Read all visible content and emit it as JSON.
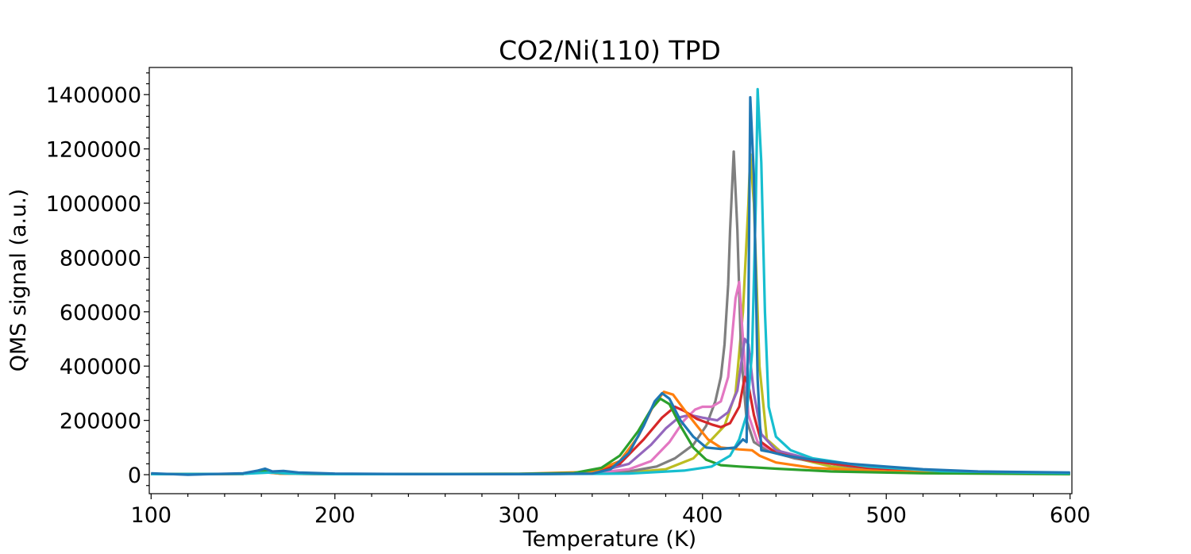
{
  "chart_data": {
    "type": "line",
    "title": "CO2/Ni(110) TPD",
    "xlabel": "Temperature (K)",
    "ylabel": "QMS signal (a.u.)",
    "xlim": [
      99,
      601
    ],
    "ylim": [
      -70000,
      1500000
    ],
    "xticks": [
      100,
      200,
      300,
      400,
      500,
      600
    ],
    "yticks": [
      0,
      200000,
      400000,
      600000,
      800000,
      1000000,
      1200000,
      1400000
    ],
    "grid": false,
    "legend": "none",
    "series": [
      {
        "color": "#bcbd22",
        "points": [
          [
            100,
            2000
          ],
          [
            150,
            3000
          ],
          [
            160,
            12000
          ],
          [
            170,
            5000
          ],
          [
            200,
            2000
          ],
          [
            300,
            2000
          ],
          [
            340,
            4000
          ],
          [
            360,
            8000
          ],
          [
            380,
            20000
          ],
          [
            395,
            60000
          ],
          [
            405,
            130000
          ],
          [
            412,
            180000
          ],
          [
            418,
            300000
          ],
          [
            422,
            600000
          ],
          [
            425,
            1000000
          ],
          [
            426,
            1180000
          ],
          [
            428,
            1000000
          ],
          [
            431,
            400000
          ],
          [
            435,
            130000
          ],
          [
            445,
            70000
          ],
          [
            470,
            30000
          ],
          [
            500,
            15000
          ],
          [
            550,
            6000
          ],
          [
            600,
            3000
          ]
        ]
      },
      {
        "color": "#7f7f7f",
        "points": [
          [
            100,
            2000
          ],
          [
            150,
            3000
          ],
          [
            160,
            10000
          ],
          [
            170,
            4000
          ],
          [
            200,
            2000
          ],
          [
            300,
            2000
          ],
          [
            340,
            4000
          ],
          [
            360,
            12000
          ],
          [
            375,
            30000
          ],
          [
            385,
            60000
          ],
          [
            395,
            110000
          ],
          [
            402,
            180000
          ],
          [
            407,
            270000
          ],
          [
            410,
            360000
          ],
          [
            412,
            480000
          ],
          [
            414,
            700000
          ],
          [
            415,
            900000
          ],
          [
            417,
            1190000
          ],
          [
            419,
            900000
          ],
          [
            421,
            450000
          ],
          [
            424,
            200000
          ],
          [
            428,
            120000
          ],
          [
            435,
            90000
          ],
          [
            450,
            60000
          ],
          [
            480,
            30000
          ],
          [
            520,
            12000
          ],
          [
            600,
            4000
          ]
        ]
      },
      {
        "color": "#e377c2",
        "points": [
          [
            100,
            2000
          ],
          [
            150,
            3000
          ],
          [
            160,
            14000
          ],
          [
            170,
            5000
          ],
          [
            200,
            2000
          ],
          [
            300,
            2000
          ],
          [
            340,
            5000
          ],
          [
            360,
            20000
          ],
          [
            372,
            50000
          ],
          [
            382,
            120000
          ],
          [
            390,
            200000
          ],
          [
            396,
            240000
          ],
          [
            400,
            250000
          ],
          [
            405,
            250000
          ],
          [
            410,
            270000
          ],
          [
            414,
            360000
          ],
          [
            416,
            500000
          ],
          [
            418,
            650000
          ],
          [
            420,
            710000
          ],
          [
            422,
            500000
          ],
          [
            425,
            220000
          ],
          [
            430,
            120000
          ],
          [
            440,
            80000
          ],
          [
            460,
            50000
          ],
          [
            490,
            25000
          ],
          [
            530,
            10000
          ],
          [
            600,
            4000
          ]
        ]
      },
      {
        "color": "#9467bd",
        "points": [
          [
            100,
            2000
          ],
          [
            150,
            3000
          ],
          [
            160,
            12000
          ],
          [
            170,
            5000
          ],
          [
            200,
            2000
          ],
          [
            300,
            2000
          ],
          [
            340,
            6000
          ],
          [
            360,
            40000
          ],
          [
            372,
            110000
          ],
          [
            380,
            170000
          ],
          [
            387,
            210000
          ],
          [
            393,
            220000
          ],
          [
            400,
            210000
          ],
          [
            408,
            200000
          ],
          [
            414,
            230000
          ],
          [
            419,
            310000
          ],
          [
            423,
            500000
          ],
          [
            425,
            480000
          ],
          [
            428,
            300000
          ],
          [
            432,
            150000
          ],
          [
            440,
            90000
          ],
          [
            460,
            55000
          ],
          [
            490,
            28000
          ],
          [
            530,
            12000
          ],
          [
            600,
            5000
          ]
        ]
      },
      {
        "color": "#d62728",
        "points": [
          [
            100,
            2000
          ],
          [
            150,
            3000
          ],
          [
            160,
            13000
          ],
          [
            170,
            5000
          ],
          [
            200,
            2000
          ],
          [
            300,
            2000
          ],
          [
            340,
            8000
          ],
          [
            355,
            40000
          ],
          [
            368,
            130000
          ],
          [
            378,
            210000
          ],
          [
            385,
            250000
          ],
          [
            390,
            235000
          ],
          [
            397,
            205000
          ],
          [
            405,
            185000
          ],
          [
            410,
            175000
          ],
          [
            415,
            190000
          ],
          [
            420,
            250000
          ],
          [
            423,
            360000
          ],
          [
            425,
            330000
          ],
          [
            428,
            220000
          ],
          [
            432,
            120000
          ],
          [
            440,
            80000
          ],
          [
            460,
            50000
          ],
          [
            490,
            25000
          ],
          [
            530,
            10000
          ],
          [
            600,
            4000
          ]
        ]
      },
      {
        "color": "#ff7f0e",
        "points": [
          [
            100,
            2000
          ],
          [
            150,
            3000
          ],
          [
            160,
            11000
          ],
          [
            170,
            4000
          ],
          [
            200,
            2000
          ],
          [
            300,
            3000
          ],
          [
            340,
            10000
          ],
          [
            355,
            50000
          ],
          [
            365,
            140000
          ],
          [
            373,
            250000
          ],
          [
            379,
            305000
          ],
          [
            384,
            295000
          ],
          [
            390,
            240000
          ],
          [
            397,
            180000
          ],
          [
            403,
            130000
          ],
          [
            410,
            100000
          ],
          [
            420,
            93000
          ],
          [
            427,
            90000
          ],
          [
            431,
            70000
          ],
          [
            440,
            45000
          ],
          [
            460,
            25000
          ],
          [
            500,
            12000
          ],
          [
            550,
            6000
          ],
          [
            600,
            3000
          ]
        ]
      },
      {
        "color": "#2ca02c",
        "points": [
          [
            100,
            2000
          ],
          [
            150,
            3000
          ],
          [
            160,
            15000
          ],
          [
            170,
            6000
          ],
          [
            200,
            2000
          ],
          [
            300,
            3000
          ],
          [
            330,
            6000
          ],
          [
            345,
            25000
          ],
          [
            355,
            70000
          ],
          [
            365,
            160000
          ],
          [
            372,
            240000
          ],
          [
            377,
            280000
          ],
          [
            382,
            260000
          ],
          [
            388,
            180000
          ],
          [
            395,
            100000
          ],
          [
            402,
            55000
          ],
          [
            410,
            35000
          ],
          [
            420,
            30000
          ],
          [
            440,
            22000
          ],
          [
            470,
            12000
          ],
          [
            520,
            5000
          ],
          [
            600,
            2000
          ]
        ]
      },
      {
        "color": "#17becf",
        "points": [
          [
            100,
            2000
          ],
          [
            150,
            3000
          ],
          [
            165,
            8000
          ],
          [
            175,
            4000
          ],
          [
            200,
            2000
          ],
          [
            300,
            2000
          ],
          [
            360,
            4000
          ],
          [
            390,
            15000
          ],
          [
            405,
            30000
          ],
          [
            415,
            70000
          ],
          [
            420,
            130000
          ],
          [
            424,
            220000
          ],
          [
            427,
            450000
          ],
          [
            429,
            1000000
          ],
          [
            430,
            1420000
          ],
          [
            432,
            1150000
          ],
          [
            434,
            600000
          ],
          [
            436,
            250000
          ],
          [
            440,
            140000
          ],
          [
            448,
            90000
          ],
          [
            460,
            60000
          ],
          [
            490,
            30000
          ],
          [
            530,
            13000
          ],
          [
            600,
            5000
          ]
        ]
      },
      {
        "color": "#1f77b4",
        "points": [
          [
            100,
            5000
          ],
          [
            120,
            0
          ],
          [
            150,
            5000
          ],
          [
            158,
            15000
          ],
          [
            162,
            22000
          ],
          [
            166,
            12000
          ],
          [
            172,
            14000
          ],
          [
            180,
            8000
          ],
          [
            200,
            4000
          ],
          [
            250,
            2000
          ],
          [
            300,
            2000
          ],
          [
            340,
            4000
          ],
          [
            350,
            20000
          ],
          [
            360,
            80000
          ],
          [
            368,
            180000
          ],
          [
            374,
            270000
          ],
          [
            378,
            300000
          ],
          [
            382,
            280000
          ],
          [
            388,
            200000
          ],
          [
            395,
            140000
          ],
          [
            402,
            100000
          ],
          [
            410,
            95000
          ],
          [
            418,
            100000
          ],
          [
            422,
            130000
          ],
          [
            424,
            120000
          ],
          [
            425,
            600000
          ],
          [
            426,
            1390000
          ],
          [
            428,
            1100000
          ],
          [
            430,
            350000
          ],
          [
            432,
            90000
          ],
          [
            436,
            85000
          ],
          [
            445,
            70000
          ],
          [
            460,
            55000
          ],
          [
            480,
            40000
          ],
          [
            500,
            30000
          ],
          [
            520,
            20000
          ],
          [
            550,
            12000
          ],
          [
            600,
            8000
          ]
        ]
      }
    ]
  }
}
